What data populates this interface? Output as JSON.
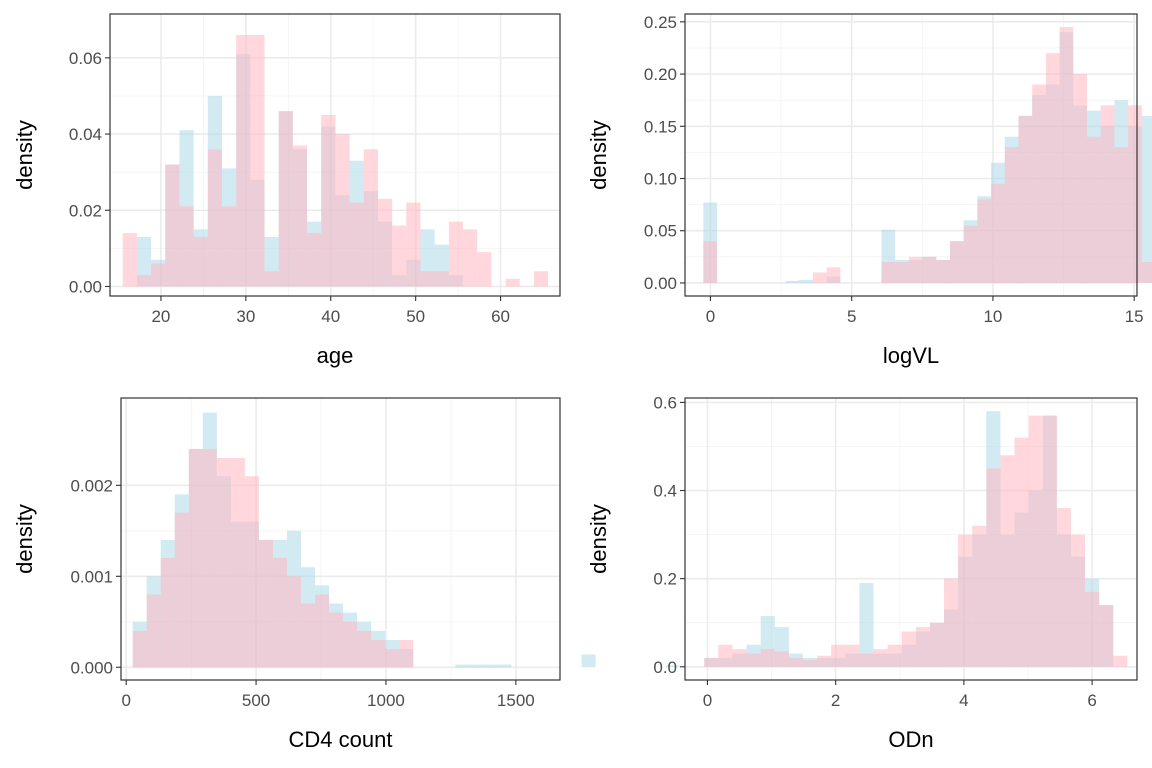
{
  "colors": {
    "series_a": "#add8e6",
    "series_b": "#ffb6c1",
    "fill_opacity": 0.55
  },
  "chart_data": [
    {
      "type": "histogram",
      "xlabel": "age",
      "ylabel": "density",
      "xlim": [
        14,
        67
      ],
      "ylim": [
        -0.0025,
        0.0715
      ],
      "x_ticks": [
        20,
        30,
        40,
        50,
        60
      ],
      "y_ticks": [
        0.0,
        0.02,
        0.04,
        0.06
      ],
      "x_tick_labels": [
        "20",
        "30",
        "40",
        "50",
        "60"
      ],
      "y_tick_labels": [
        "0.00",
        "0.02",
        "0.04",
        "0.06"
      ],
      "grid": true,
      "legend": "none",
      "bin_start": 15.5,
      "bin_width": 1.67,
      "series": [
        {
          "values": [
            0.0,
            0.013,
            0.007,
            0.032,
            0.041,
            0.015,
            0.05,
            0.031,
            0.061,
            0.028,
            0.013,
            0.046,
            0.036,
            0.017,
            0.042,
            0.024,
            0.033,
            0.025,
            0.017,
            0.003,
            0.007,
            0.015,
            0.011,
            0.003,
            0.0,
            0.0,
            0.0,
            0.0,
            0.0,
            0.0
          ]
        },
        {
          "values": [
            0.014,
            0.003,
            0.006,
            0.032,
            0.021,
            0.013,
            0.036,
            0.021,
            0.066,
            0.066,
            0.004,
            0.046,
            0.037,
            0.014,
            0.045,
            0.04,
            0.022,
            0.036,
            0.023,
            0.016,
            0.022,
            0.004,
            0.004,
            0.017,
            0.015,
            0.009,
            0.0,
            0.002,
            0.0,
            0.004
          ]
        }
      ]
    },
    {
      "type": "histogram",
      "xlabel": "logVL",
      "ylabel": "density",
      "xlim": [
        -0.9,
        15.1
      ],
      "ylim": [
        -0.0125,
        0.2575
      ],
      "x_ticks": [
        0,
        5,
        10,
        15
      ],
      "y_ticks": [
        0.0,
        0.05,
        0.1,
        0.15,
        0.2,
        0.25
      ],
      "x_tick_labels": [
        "0",
        "5",
        "10",
        "15"
      ],
      "y_tick_labels": [
        "0.00",
        "0.05",
        "0.10",
        "0.15",
        "0.20",
        "0.25"
      ],
      "grid": true,
      "legend": "none",
      "bin_start": -0.25,
      "bin_width": 0.485,
      "series": [
        {
          "values": [
            0.077,
            0.0,
            0.0,
            0.0,
            0.0,
            0.0,
            0.002,
            0.003,
            0.0,
            0.006,
            0.0,
            0.0,
            0.0,
            0.051,
            0.022,
            0.022,
            0.025,
            0.022,
            0.04,
            0.06,
            0.083,
            0.115,
            0.14,
            0.16,
            0.18,
            0.19,
            0.24,
            0.17,
            0.165,
            0.15,
            0.175,
            0.15,
            0.16,
            0.02,
            0.02,
            0.028
          ]
        },
        {
          "values": [
            0.04,
            0.0,
            0.0,
            0.0,
            0.0,
            0.0,
            0.0,
            0.0,
            0.01,
            0.015,
            0.0,
            0.0,
            0.0,
            0.02,
            0.02,
            0.025,
            0.025,
            0.022,
            0.04,
            0.055,
            0.08,
            0.095,
            0.13,
            0.16,
            0.19,
            0.22,
            0.245,
            0.2,
            0.14,
            0.17,
            0.13,
            0.17,
            0.02,
            0.02,
            0.02,
            0.0
          ]
        }
      ]
    },
    {
      "type": "histogram",
      "xlabel": "CD4 count",
      "ylabel": "density",
      "xlim": [
        -20,
        1670
      ],
      "ylim": [
        -0.00014,
        0.00296
      ],
      "x_ticks": [
        0,
        500,
        1000,
        1500
      ],
      "y_ticks": [
        0.0,
        0.001,
        0.002
      ],
      "x_tick_labels": [
        "0",
        "500",
        "1000",
        "1500"
      ],
      "y_tick_labels": [
        "0.000",
        "0.001",
        "0.002"
      ],
      "grid": true,
      "legend": "none",
      "bin_start": 25,
      "bin_width": 54,
      "series": [
        {
          "values": [
            0.0005,
            0.001,
            0.0014,
            0.0019,
            0.0024,
            0.0028,
            0.0021,
            0.0016,
            0.0016,
            0.0014,
            0.0014,
            0.0015,
            0.0011,
            0.0009,
            0.0007,
            0.0006,
            0.0005,
            0.0004,
            0.0003,
            0.0002,
            0.0,
            0.0,
            0.0,
            3e-05,
            3e-05,
            3e-05,
            3e-05,
            0.0,
            0.0,
            0.0,
            0.0,
            0.0,
            0.00014,
            0.0,
            0.0,
            0.0,
            0.0,
            0.0,
            2e-05,
            0.0
          ]
        },
        {
          "values": [
            0.0004,
            0.0008,
            0.0012,
            0.0017,
            0.0024,
            0.0024,
            0.0023,
            0.0023,
            0.0021,
            0.0014,
            0.0012,
            0.001,
            0.0007,
            0.0008,
            0.0006,
            0.0005,
            0.0004,
            0.0003,
            0.0002,
            0.0003,
            0.0,
            0.0,
            0.0,
            0.0,
            0.0,
            0.0,
            0.0,
            0.0,
            0.0,
            0.0,
            0.0,
            0.0,
            0.0,
            0.0,
            0.0,
            0.0,
            0.0,
            0.0,
            0.0,
            0.0
          ]
        }
      ]
    },
    {
      "type": "histogram",
      "xlabel": "ODn",
      "ylabel": "density",
      "xlim": [
        -0.35,
        6.7
      ],
      "ylim": [
        -0.03,
        0.61
      ],
      "x_ticks": [
        0,
        2,
        4,
        6
      ],
      "y_ticks": [
        0.0,
        0.2,
        0.4,
        0.6
      ],
      "x_tick_labels": [
        "0",
        "2",
        "4",
        "6"
      ],
      "y_tick_labels": [
        "0.0",
        "0.2",
        "0.4",
        "0.6"
      ],
      "grid": true,
      "legend": "none",
      "bin_start": -0.05,
      "bin_width": 0.22,
      "series": [
        {
          "values": [
            0.02,
            0.02,
            0.03,
            0.05,
            0.115,
            0.09,
            0.03,
            0.02,
            0.02,
            0.02,
            0.03,
            0.19,
            0.03,
            0.03,
            0.05,
            0.08,
            0.1,
            0.13,
            0.25,
            0.3,
            0.58,
            0.3,
            0.35,
            0.4,
            0.57,
            0.3,
            0.25,
            0.2,
            0.14,
            0.0
          ]
        },
        {
          "values": [
            0.02,
            0.05,
            0.04,
            0.03,
            0.04,
            0.035,
            0.02,
            0.015,
            0.025,
            0.05,
            0.05,
            0.03,
            0.04,
            0.05,
            0.08,
            0.09,
            0.1,
            0.2,
            0.3,
            0.32,
            0.45,
            0.48,
            0.52,
            0.57,
            0.57,
            0.36,
            0.3,
            0.17,
            0.14,
            0.025
          ]
        }
      ]
    }
  ]
}
